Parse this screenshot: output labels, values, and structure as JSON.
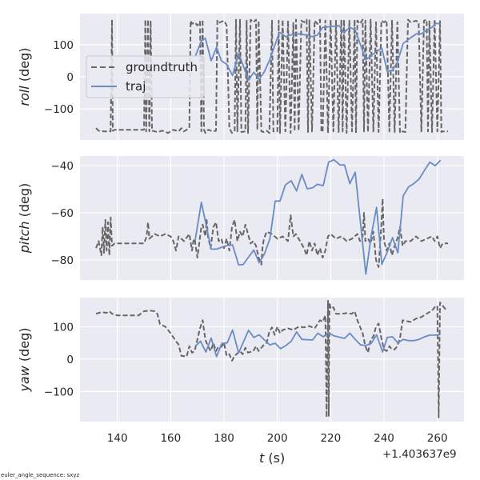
{
  "footer_note": "euler_angle_sequence: sxyz",
  "x_offset_label": "+1.403637e9",
  "legend": {
    "placement": "upper-left of top panel",
    "entries": [
      "groundtruth",
      "traj"
    ]
  },
  "colors": {
    "background": "#eaeaf2",
    "grid": "#ffffff",
    "groundtruth": "#666666",
    "traj": "#6a8bc3"
  },
  "chart_data": [
    {
      "type": "line",
      "ylabel_italic": "roll",
      "ylabel_unit": " (deg)",
      "xlim": [
        126,
        270
      ],
      "ylim": [
        -197,
        197
      ],
      "yticks": [
        100,
        0,
        -100
      ],
      "grid": true,
      "series": [
        {
          "name": "groundtruth",
          "style": "dashed",
          "x": [
            132,
            133,
            135,
            137.5,
            138,
            138.3,
            139,
            150,
            150.5,
            150.8,
            151.5,
            152,
            152.5,
            153,
            155,
            157,
            159,
            161,
            163,
            164,
            165,
            166,
            167,
            167.5,
            168,
            169,
            170,
            171,
            171.5,
            172,
            172.5,
            173,
            174,
            176,
            177,
            177.5,
            178,
            180,
            181,
            182,
            183,
            184,
            184.5,
            185,
            186,
            186.5,
            188,
            188.5,
            189,
            190,
            191,
            192,
            192.5,
            193,
            194,
            195,
            196,
            197,
            198,
            198.5,
            200,
            200.5,
            201,
            202,
            203,
            204,
            205,
            206,
            206.5,
            207,
            208,
            209,
            210,
            211,
            211.5,
            212,
            213,
            214,
            215,
            216,
            216.5,
            217,
            218,
            219,
            220,
            221,
            222,
            223,
            224,
            224.5,
            225,
            226,
            227,
            228,
            229,
            229.5,
            230,
            231,
            232,
            232.5,
            233,
            234,
            235,
            236,
            237,
            238,
            239,
            240,
            241,
            242,
            243,
            244,
            245,
            246,
            247,
            248,
            249,
            250,
            251,
            252,
            253,
            254,
            255,
            256,
            256.5,
            257,
            258,
            259,
            260,
            261,
            261.5,
            262,
            264
          ],
          "y": [
            -160,
            -168,
            -170,
            -170,
            178,
            -168,
            -165,
            -165,
            178,
            -170,
            178,
            -170,
            175,
            -168,
            -172,
            -168,
            -175,
            -165,
            -170,
            -160,
            -170,
            -165,
            -160,
            175,
            165,
            170,
            160,
            172,
            -170,
            178,
            -165,
            -175,
            -165,
            -170,
            -168,
            175,
            168,
            175,
            160,
            -160,
            -175,
            -170,
            178,
            -170,
            178,
            -172,
            -170,
            175,
            -175,
            178,
            170,
            178,
            -165,
            175,
            -170,
            -172,
            -168,
            -175,
            175,
            -170,
            -170,
            175,
            -175,
            178,
            -170,
            175,
            -175,
            170,
            -170,
            178,
            -168,
            175,
            170,
            178,
            -172,
            176,
            -170,
            175,
            165,
            178,
            -170,
            -172,
            175,
            -175,
            178,
            -170,
            175,
            -172,
            178,
            -170,
            178,
            -175,
            175,
            -170,
            178,
            -175,
            175,
            165,
            178,
            -170,
            175,
            -172,
            178,
            -170,
            170,
            -172,
            175,
            170,
            176,
            -170,
            175,
            -172,
            170,
            -175,
            -170,
            -172,
            178,
            170,
            172,
            175,
            170,
            -170,
            175,
            178,
            -170,
            175,
            -172,
            178,
            -170,
            176,
            -172,
            -170,
            -170
          ]
        },
        {
          "name": "traj",
          "style": "solid",
          "x": [
            169.2,
            171.5,
            173,
            175.2,
            177.2,
            179,
            181,
            183.2,
            185.5,
            189.2,
            191.2,
            193.2,
            195.2,
            197.2,
            200.8,
            203.2,
            205.2,
            208,
            211,
            213,
            215,
            217,
            219.5,
            223.2,
            225,
            227.2,
            229.2,
            233.2,
            237.2,
            239.2,
            241.2,
            243.2,
            245,
            247.2,
            250.2,
            252.2,
            254,
            256,
            258,
            259.5,
            261.2
          ],
          "y": [
            63,
            112,
            120,
            50,
            92,
            50,
            39,
            4,
            73,
            -10,
            14,
            -8,
            17,
            54,
            139,
            125,
            131,
            134,
            130,
            125,
            130,
            154,
            156,
            159,
            138,
            154,
            146,
            53,
            79,
            89,
            17,
            21,
            46,
            104,
            123,
            134,
            134,
            146,
            154,
            167,
            164
          ]
        }
      ]
    },
    {
      "type": "line",
      "ylabel_italic": "pitch",
      "ylabel_unit": " (deg)",
      "xlim": [
        126,
        270
      ],
      "ylim": [
        -88.5,
        -35.9
      ],
      "yticks": [
        -40,
        -60,
        -80
      ],
      "grid": true,
      "series": [
        {
          "name": "groundtruth",
          "style": "dashed",
          "x": [
            132,
            133,
            134,
            134.5,
            135,
            135.5,
            136,
            136.5,
            137,
            137.5,
            138,
            139,
            150,
            151,
            151.5,
            152,
            154,
            156,
            158,
            160,
            161,
            162,
            163,
            165,
            167,
            168,
            168.5,
            169,
            170,
            170.5,
            171.5,
            172,
            173,
            173.5,
            174,
            175,
            176,
            177,
            178,
            179,
            180,
            181,
            182,
            183,
            184,
            185,
            186,
            187,
            188,
            189,
            190,
            191,
            192,
            193,
            194,
            194.5,
            195,
            196,
            198,
            200,
            202,
            204,
            205,
            206,
            207,
            208,
            210,
            211,
            212,
            213,
            214,
            215,
            216,
            217,
            218,
            219,
            220,
            222,
            224,
            226,
            228,
            230,
            231,
            232,
            232.5,
            233,
            234,
            235,
            236,
            237,
            238,
            239,
            239.5,
            240,
            241,
            242,
            243,
            244,
            245,
            246,
            247,
            248,
            250,
            252,
            254,
            256,
            258,
            259,
            260,
            261,
            262,
            264
          ],
          "y": [
            -75,
            -72,
            -78,
            -66,
            -77,
            -63,
            -76,
            -64,
            -78,
            -62,
            -74,
            -73,
            -73,
            -70,
            -64,
            -71,
            -69,
            -70,
            -69,
            -70,
            -72,
            -76,
            -70,
            -72,
            -69,
            -76,
            -72,
            -71,
            -79,
            -75,
            -66,
            -65,
            -70,
            -63,
            -70,
            -75,
            -66,
            -64,
            -72,
            -71,
            -75,
            -71,
            -76,
            -66,
            -63,
            -72,
            -68,
            -70,
            -65,
            -69,
            -73,
            -72,
            -74,
            -79,
            -82,
            -74,
            -71,
            -68,
            -69,
            -71,
            -70,
            -72,
            -61,
            -70,
            -69,
            -71,
            -75,
            -78,
            -72,
            -76,
            -73,
            -78,
            -75,
            -79,
            -76,
            -70,
            -69,
            -71,
            -70,
            -72,
            -71,
            -69,
            -72,
            -70,
            -60,
            -72,
            -71,
            -73,
            -68,
            -80,
            -83,
            -65,
            -54,
            -72,
            -76,
            -73,
            -78,
            -74,
            -71,
            -66,
            -74,
            -72,
            -72,
            -70,
            -72,
            -71,
            -70,
            -72,
            -70,
            -75,
            -73,
            -73
          ]
        },
        {
          "name": "traj",
          "style": "solid",
          "x": [
            169.2,
            171.5,
            175.2,
            177.2,
            181,
            183.2,
            185.5,
            187.2,
            189.2,
            191.2,
            193.2,
            195.2,
            197.2,
            199.2,
            201,
            203,
            205.2,
            207.2,
            209.2,
            211.2,
            213.2,
            215,
            217.2,
            219.2,
            221.2,
            223.5,
            225.2,
            227.2,
            229.2,
            233.2,
            235.2,
            237.2,
            239.2,
            241.2,
            243.2,
            245.2,
            247.2,
            249.2,
            251.2,
            253.2,
            255.2,
            257.2,
            259.2,
            261.2
          ],
          "y": [
            -71.6,
            -55.5,
            -75.4,
            -75.4,
            -73.9,
            -73.6,
            -82.1,
            -81.9,
            -78.8,
            -75.8,
            -81.2,
            -77.3,
            -71.1,
            -55.0,
            -55.0,
            -48.2,
            -46.4,
            -50.7,
            -43.7,
            -49.8,
            -49.4,
            -47.9,
            -48.5,
            -38.5,
            -37.5,
            -39.7,
            -39.7,
            -47.6,
            -42.8,
            -86.0,
            -69.7,
            -57.7,
            -81.8,
            -76.7,
            -70.5,
            -77.0,
            -52.8,
            -49.0,
            -47.6,
            -45.6,
            -41.9,
            -38.5,
            -40.0,
            -37.7
          ]
        }
      ]
    },
    {
      "type": "line",
      "ylabel_italic": "yaw",
      "ylabel_unit": " (deg)",
      "xlabel_italic": "t",
      "xlabel_unit": " (s)",
      "xlim": [
        126,
        270
      ],
      "ylim": [
        -193,
        190
      ],
      "yticks": [
        100,
        0,
        -100
      ],
      "xticks": [
        140,
        160,
        180,
        200,
        220,
        240,
        260
      ],
      "grid": true,
      "series": [
        {
          "name": "groundtruth",
          "style": "dashed",
          "x": [
            132,
            134,
            136,
            137,
            138,
            140,
            148,
            150,
            152,
            154,
            155,
            156,
            158,
            160,
            162,
            163,
            164,
            166,
            167,
            168,
            169,
            170,
            171,
            172,
            173,
            174,
            175,
            176,
            177,
            178,
            179,
            180,
            181,
            182,
            183,
            184,
            186,
            187,
            188,
            189,
            191,
            192,
            193,
            195,
            196,
            197,
            198,
            199,
            200,
            201,
            202,
            204,
            206,
            208,
            210,
            212,
            214,
            216,
            217,
            218,
            218.5,
            219,
            219.3,
            219.6,
            220,
            221,
            222,
            224,
            226,
            228,
            229,
            230,
            232,
            233,
            234,
            235,
            236,
            237,
            238,
            239,
            240,
            241,
            242,
            243,
            244,
            245,
            246,
            247,
            248,
            250,
            252,
            254,
            256,
            258,
            259,
            260,
            260.5,
            261,
            262,
            263,
            264
          ],
          "y": [
            140,
            145,
            143,
            148,
            140,
            135,
            135,
            148,
            150,
            148,
            140,
            108,
            100,
            80,
            55,
            45,
            10,
            8,
            40,
            20,
            25,
            60,
            95,
            120,
            60,
            40,
            25,
            50,
            25,
            40,
            38,
            50,
            10,
            15,
            -5,
            10,
            25,
            15,
            35,
            20,
            25,
            40,
            25,
            45,
            50,
            85,
            98,
            75,
            100,
            80,
            90,
            95,
            90,
            100,
            98,
            102,
            95,
            120,
            115,
            135,
            -180,
            180,
            -175,
            175,
            155,
            160,
            140,
            140,
            142,
            140,
            148,
            120,
            80,
            40,
            20,
            60,
            70,
            100,
            110,
            65,
            30,
            25,
            40,
            30,
            30,
            40,
            65,
            120,
            118,
            115,
            125,
            130,
            140,
            150,
            160,
            165,
            -180,
            175,
            165,
            155,
            158
          ]
        },
        {
          "name": "traj",
          "style": "solid",
          "x": [
            169.2,
            171.2,
            173.2,
            175.2,
            177.2,
            179.2,
            181.2,
            183.2,
            185.5,
            189.2,
            191.2,
            193.2,
            195.2,
            197.2,
            199.2,
            201.2,
            203.2,
            205.2,
            207.2,
            209.2,
            211.2,
            213.2,
            215.2,
            217.2,
            219.2,
            221.2,
            223.2,
            225.2,
            227.2,
            229.2,
            231.2,
            233.2,
            235.2,
            237.2,
            239.5,
            241.2,
            243.2,
            245.2,
            247.2,
            249.2,
            251.2,
            253.2,
            255.2,
            257.2,
            259.2,
            261.2
          ],
          "y": [
            40,
            55,
            22,
            65,
            8,
            49,
            50,
            90,
            19,
            89,
            67,
            75,
            59,
            44,
            49,
            32,
            42,
            55,
            84,
            61,
            60,
            59,
            80,
            69,
            82,
            72,
            68,
            64,
            80,
            61,
            44,
            42,
            49,
            75,
            22,
            67,
            69,
            50,
            61,
            57,
            57,
            61,
            69,
            74,
            74,
            76
          ]
        }
      ]
    }
  ]
}
